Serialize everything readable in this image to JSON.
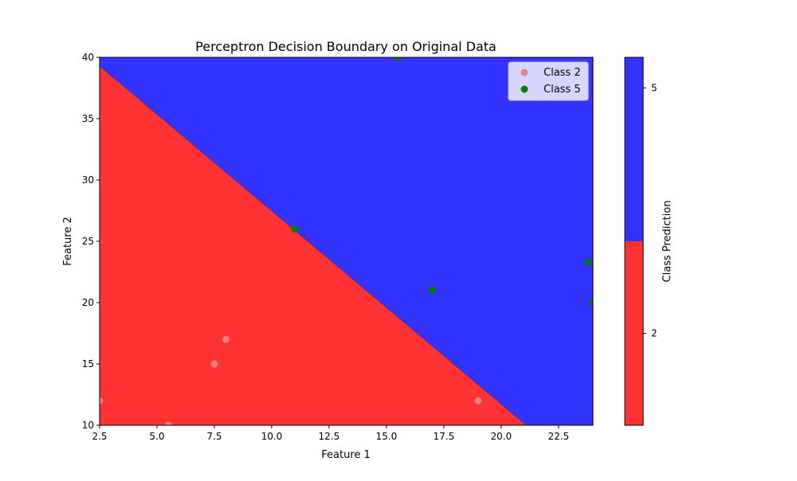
{
  "chart_data": {
    "type": "scatter",
    "title": "Perceptron Decision Boundary on Original Data",
    "xlabel": "Feature 1",
    "ylabel": "Feature 2",
    "xlim": [
      2.5,
      24.0
    ],
    "ylim": [
      10,
      40
    ],
    "xticks": [
      "2.5",
      "5.0",
      "7.5",
      "10.0",
      "12.5",
      "15.0",
      "17.5",
      "20.0",
      "22.5"
    ],
    "yticks": [
      "10",
      "15",
      "20",
      "25",
      "30",
      "35",
      "40"
    ],
    "grid": false,
    "legend_placement": "top-right",
    "decision_regions": [
      {
        "label": "2",
        "color": "#ff3333",
        "side": "below-boundary"
      },
      {
        "label": "5",
        "color": "#3333ff",
        "side": "above-boundary"
      }
    ],
    "decision_boundary": {
      "x": [
        2.5,
        21.1
      ],
      "y": [
        39.3,
        10.0
      ]
    },
    "series": [
      {
        "name": "Class 2",
        "color": "#f08080",
        "points": [
          [
            2.5,
            12
          ],
          [
            5.5,
            10
          ],
          [
            7.5,
            15
          ],
          [
            8.0,
            17
          ],
          [
            19.0,
            12
          ]
        ]
      },
      {
        "name": "Class 5",
        "color": "#008000",
        "points": [
          [
            15.5,
            40
          ],
          [
            11.0,
            26
          ],
          [
            17.0,
            21
          ],
          [
            23.8,
            23.3
          ],
          [
            24.0,
            20
          ]
        ]
      }
    ],
    "colorbar": {
      "label": "Class Prediction",
      "ticks": [
        "2",
        "5"
      ],
      "segments": [
        {
          "color": "#ff3333",
          "from": 0.0,
          "to": 0.5
        },
        {
          "color": "#3333ff",
          "from": 0.5,
          "to": 1.0
        }
      ]
    }
  }
}
